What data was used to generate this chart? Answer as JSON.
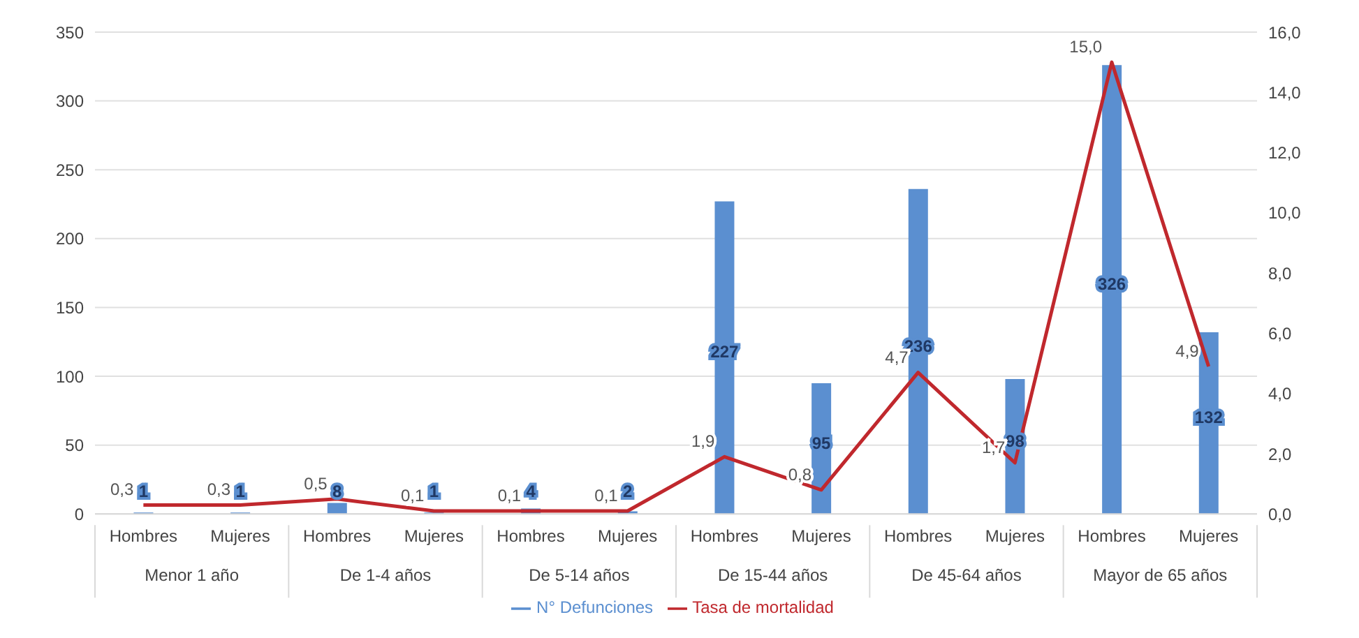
{
  "chart_data": {
    "type": "bar",
    "categories": [
      "Hombres",
      "Mujeres",
      "Hombres",
      "Mujeres",
      "Hombres",
      "Mujeres",
      "Hombres",
      "Mujeres",
      "Hombres",
      "Mujeres",
      "Hombres",
      "Mujeres"
    ],
    "annotations": [
      "Menor 1 año",
      "De 1-4 años",
      "De 5-14 años",
      "De 15-44 años",
      "De 45-64 años",
      "Mayor de 65 años"
    ],
    "series": [
      {
        "name": "N° Defunciones",
        "color": "#5b8fd0",
        "values": [
          1,
          1,
          8,
          1,
          4,
          2,
          227,
          95,
          236,
          98,
          326,
          132
        ],
        "value_labels": [
          "1",
          "1",
          "8",
          "1",
          "4",
          "2",
          "227",
          "95",
          "236",
          "98",
          "326",
          "132"
        ]
      },
      {
        "name": "Tasa de mortalidad",
        "type": "line",
        "axis": "y2",
        "color": "#c0282d",
        "values": [
          0.3,
          0.3,
          0.5,
          0.1,
          0.1,
          0.1,
          1.9,
          0.8,
          4.7,
          1.7,
          15.0,
          4.9
        ],
        "value_labels": [
          "0,3",
          "0,3",
          "0,5",
          "0,1",
          "0,1",
          "0,1",
          "1,9",
          "0,8",
          "4,7",
          "1,7",
          "15,0",
          "4,9"
        ]
      }
    ],
    "ylim": [
      0,
      350
    ],
    "yticks": [
      0,
      50,
      100,
      150,
      200,
      250,
      300,
      350
    ],
    "y2lim": [
      0,
      16
    ],
    "y2ticks": [
      {
        "value": 0,
        "label": "0,0"
      },
      {
        "value": 2,
        "label": "2,0"
      },
      {
        "value": 4,
        "label": "4,0"
      },
      {
        "value": 6,
        "label": "6,0"
      },
      {
        "value": 8,
        "label": "8,0"
      },
      {
        "value": 10,
        "label": "10,0"
      },
      {
        "value": 12,
        "label": "12,0"
      },
      {
        "value": 14,
        "label": "14,0"
      },
      {
        "value": 16,
        "label": "16,0"
      }
    ],
    "grid": "y",
    "legend": "bottom",
    "marker": "none",
    "line_style": "solid"
  }
}
